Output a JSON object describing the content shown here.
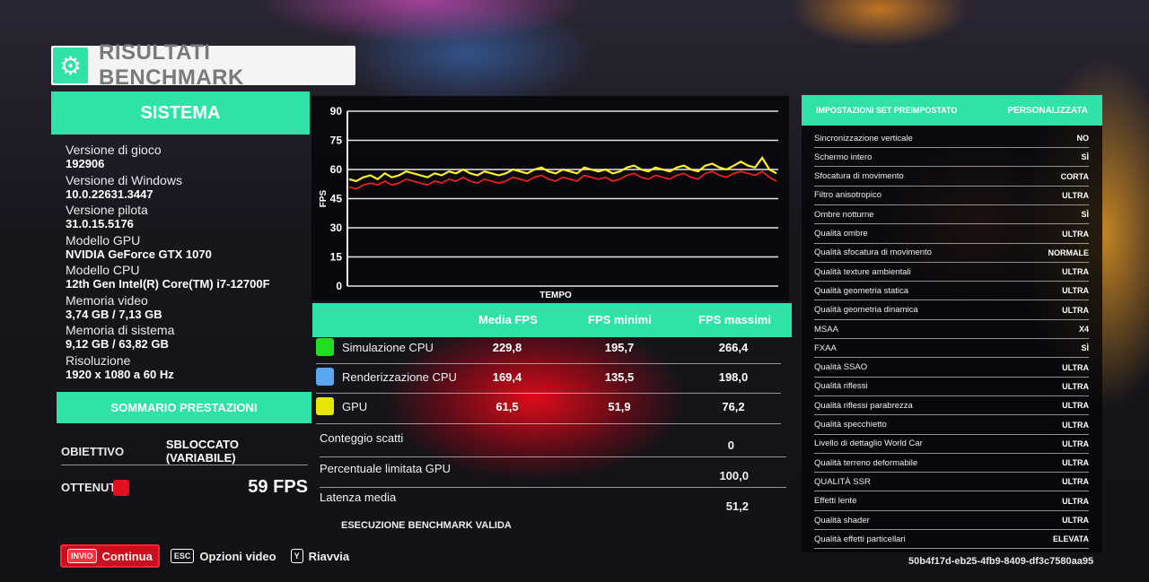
{
  "title": "RISULTATI BENCHMARK",
  "system": {
    "header": "SISTEMA",
    "items": [
      {
        "label": "Versione di gioco",
        "value": "192906"
      },
      {
        "label": "Versione di Windows",
        "value": "10.0.22631.3447"
      },
      {
        "label": "Versione pilota",
        "value": "31.0.15.5176"
      },
      {
        "label": "Modello GPU",
        "value": "NVIDIA GeForce GTX 1070"
      },
      {
        "label": "Modello CPU",
        "value": "12th Gen Intel(R) Core(TM) i7-12700F"
      },
      {
        "label": "Memoria video",
        "value": "3,74 GB / 7,13 GB"
      },
      {
        "label": "Memoria di sistema",
        "value": "9,12 GB / 63,82 GB"
      },
      {
        "label": "Risoluzione",
        "value": "1920 x 1080 a 60 Hz"
      }
    ]
  },
  "performance": {
    "header": "SOMMARIO PRESTAZIONI",
    "target_label": "OBIETTIVO",
    "target_value": "SBLOCCATO (VARIABILE)",
    "achieved_label": "OTTENUTO",
    "achieved_value": "59 FPS",
    "achieved_color": "#e10f1f"
  },
  "chart_data": {
    "type": "line",
    "xlabel": "TEMPO",
    "ylabel": "FPS",
    "ylim": [
      0,
      90
    ],
    "yticks": [
      0,
      15,
      30,
      45,
      60,
      75,
      90
    ],
    "grid": true,
    "series": [
      {
        "color": "#ffef2a",
        "values": [
          55,
          54,
          56,
          57,
          55,
          58,
          56,
          57,
          59,
          58,
          57,
          56,
          58,
          57,
          59,
          58,
          60,
          58,
          57,
          59,
          58,
          57,
          58,
          60,
          59,
          58,
          60,
          61,
          59,
          58,
          60,
          59,
          58,
          61,
          60,
          59,
          60,
          58,
          59,
          61,
          62,
          60,
          59,
          61,
          60,
          59,
          61,
          62,
          60,
          59,
          62,
          63,
          61,
          60,
          62,
          64,
          62,
          61,
          66,
          60,
          58
        ]
      },
      {
        "color": "#ff2020",
        "values": [
          51,
          50,
          52,
          53,
          52,
          54,
          52,
          53,
          55,
          54,
          53,
          52,
          54,
          53,
          55,
          54,
          56,
          54,
          53,
          55,
          54,
          53,
          54,
          56,
          55,
          54,
          56,
          57,
          55,
          54,
          56,
          55,
          54,
          57,
          56,
          55,
          56,
          54,
          55,
          57,
          58,
          56,
          55,
          57,
          56,
          55,
          57,
          58,
          56,
          55,
          58,
          59,
          57,
          56,
          58,
          59,
          58,
          57,
          59,
          56,
          54
        ]
      }
    ]
  },
  "stats": {
    "headers": [
      "Media FPS",
      "FPS minimi",
      "FPS massimi"
    ],
    "rows": [
      {
        "name": "Simulazione CPU",
        "color": "#22dd22",
        "avg": "229,8",
        "min": "195,7",
        "max": "266,4"
      },
      {
        "name": "Renderizzazione CPU",
        "color": "#5aa7ee",
        "avg": "169,4",
        "min": "135,5",
        "max": "198,0"
      },
      {
        "name": "GPU",
        "color": "#e6e600",
        "avg": "61,5",
        "min": "51,9",
        "max": "76,2"
      }
    ],
    "extra": [
      {
        "label": "Conteggio scatti",
        "value": "0"
      },
      {
        "label": "Percentuale limitata GPU",
        "value": "100,0"
      },
      {
        "label": "Latenza media",
        "value": "51,2"
      }
    ],
    "valid_text": "ESECUZIONE BENCHMARK VALIDA"
  },
  "settings": {
    "header_left": "IMPOSTAZIONI SET PREIMPOSTATO",
    "header_right": "PERSONALIZZATA",
    "items": [
      {
        "label": "Sincronizzazione verticale",
        "value": "NO"
      },
      {
        "label": "Schermo intero",
        "value": "SÌ"
      },
      {
        "label": "Sfocatura di movimento",
        "value": "CORTA"
      },
      {
        "label": "Filtro anisotropico",
        "value": "ULTRA"
      },
      {
        "label": "Ombre notturne",
        "value": "SÌ"
      },
      {
        "label": "Qualità ombre",
        "value": "ULTRA"
      },
      {
        "label": "Qualità sfocatura di movimento",
        "value": "NORMALE"
      },
      {
        "label": "Qualità texture ambientali",
        "value": "ULTRA"
      },
      {
        "label": "Qualità geometria statica",
        "value": "ULTRA"
      },
      {
        "label": "Qualità geometria dinamica",
        "value": "ULTRA"
      },
      {
        "label": "MSAA",
        "value": "X4"
      },
      {
        "label": "FXAA",
        "value": "SÌ"
      },
      {
        "label": "Qualità SSAO",
        "value": "ULTRA"
      },
      {
        "label": "Qualità riflessi",
        "value": "ULTRA"
      },
      {
        "label": "Qualità riflessi parabrezza",
        "value": "ULTRA"
      },
      {
        "label": "Qualità specchietto",
        "value": "ULTRA"
      },
      {
        "label": "Livello di dettaglio World Car",
        "value": "ULTRA"
      },
      {
        "label": "Qualità terreno deformabile",
        "value": "ULTRA"
      },
      {
        "label": "QUALITÀ SSR",
        "value": "ULTRA"
      },
      {
        "label": "Effetti lente",
        "value": "ULTRA"
      },
      {
        "label": "Qualità shader",
        "value": "ULTRA"
      },
      {
        "label": "Qualità effetti particellari",
        "value": "ELEVATA"
      }
    ]
  },
  "footer": {
    "continue_key": "INVIO",
    "continue_label": "Continua",
    "video_key": "ESC",
    "video_label": "Opzioni video",
    "restart_key": "Y",
    "restart_label": "Riavvia"
  },
  "hash": "50b4f17d-eb25-4fb9-8409-df3c7580aa95"
}
